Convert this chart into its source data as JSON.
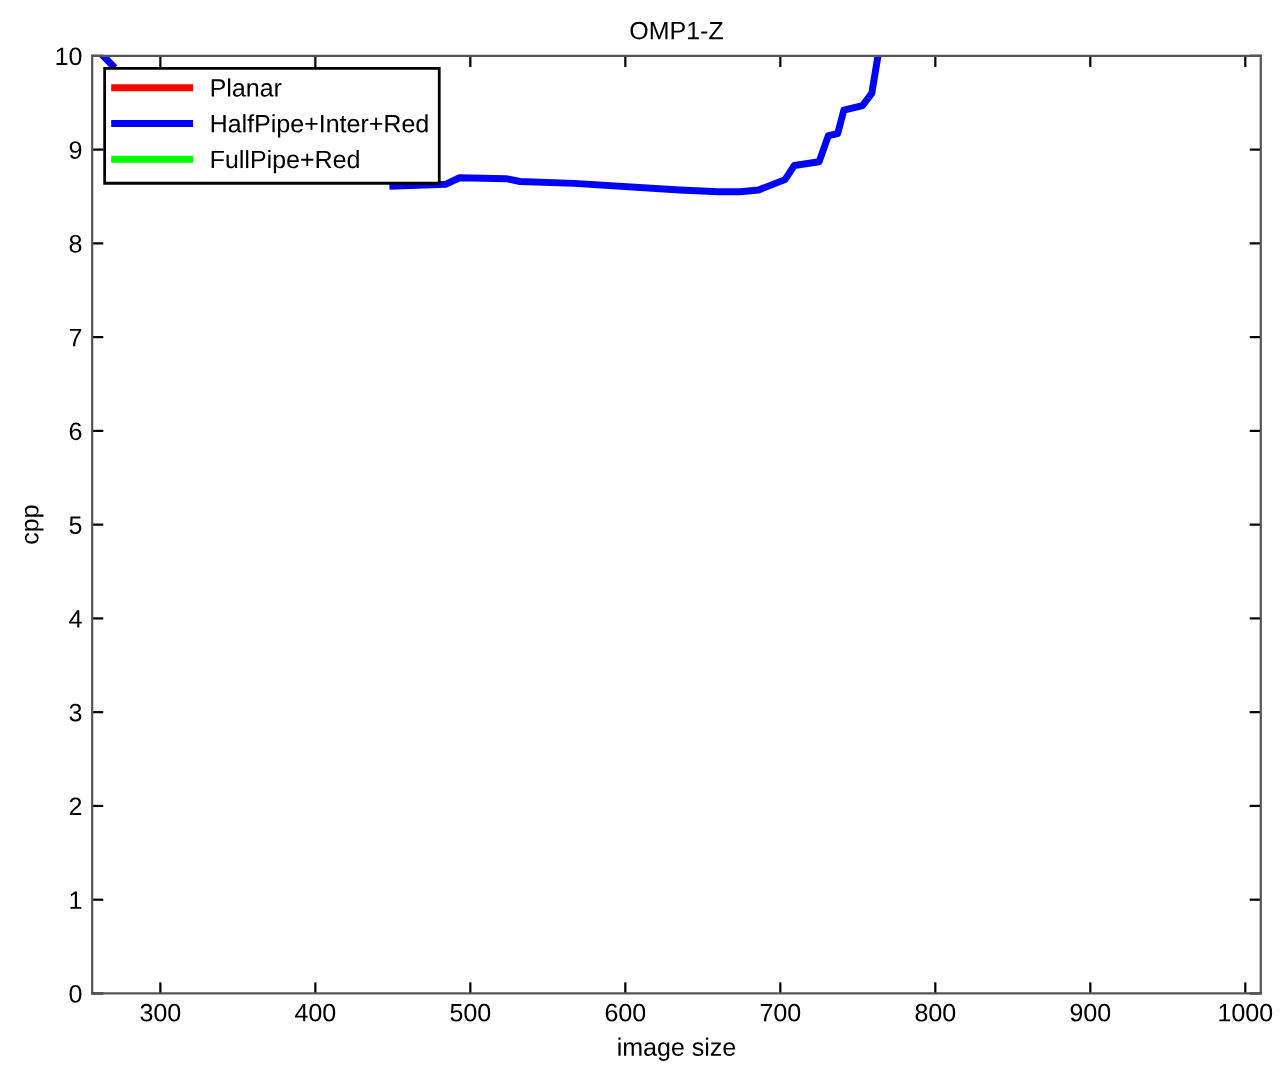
{
  "chart_data": {
    "type": "line",
    "title": "OMP1-Z",
    "xlabel": "image size",
    "ylabel": "cpp",
    "xlim": [
      256,
      1010
    ],
    "ylim": [
      0,
      10
    ],
    "xticks": [
      300,
      400,
      500,
      600,
      700,
      800,
      900,
      1000
    ],
    "yticks": [
      0,
      1,
      2,
      3,
      4,
      5,
      6,
      7,
      8,
      9,
      10
    ],
    "grid": false,
    "legend": "top left",
    "marker": "none",
    "line_style": "solid",
    "series": [
      {
        "name": "Planar",
        "color": "#ff0000"
      },
      {
        "name": "HalfPipe+Inter+Red",
        "color": "#0000ff",
        "x": [
          263,
          269,
          340,
          415,
          450,
          484,
          493,
          523,
          532,
          567,
          635,
          660,
          674,
          686,
          703,
          709,
          725,
          731,
          737,
          741,
          753,
          759,
          763
        ],
        "values": [
          10,
          9.9,
          null,
          null,
          8.61,
          8.63,
          8.7,
          8.69,
          8.66,
          8.64,
          8.57,
          8.55,
          8.55,
          8.57,
          8.68,
          8.83,
          8.87,
          9.15,
          9.17,
          9.42,
          9.47,
          9.6,
          10
        ]
      },
      {
        "name": "FullPipe+Red",
        "color": "#00ff00"
      }
    ]
  }
}
